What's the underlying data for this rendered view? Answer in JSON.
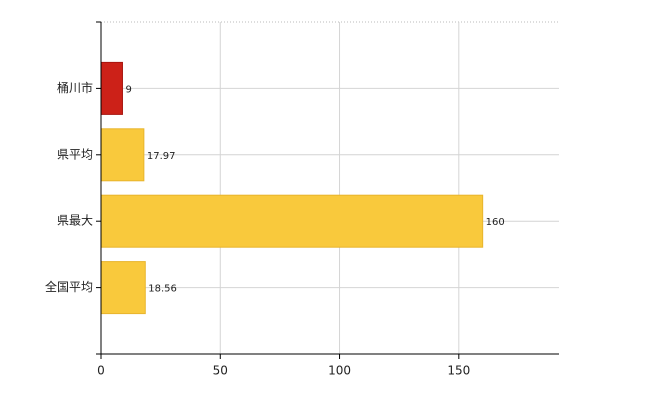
{
  "chart_data": {
    "type": "barh",
    "categories": [
      "桶川市",
      "県平均",
      "県最大",
      "全国平均"
    ],
    "values": [
      9,
      17.97,
      160,
      18.56
    ],
    "colors": [
      "#cc2118",
      "#f9c93c",
      "#f9c93c",
      "#f9c93c"
    ],
    "xlim": [
      0,
      192
    ],
    "xticks": [
      0,
      50,
      100,
      150
    ],
    "grid": true
  }
}
